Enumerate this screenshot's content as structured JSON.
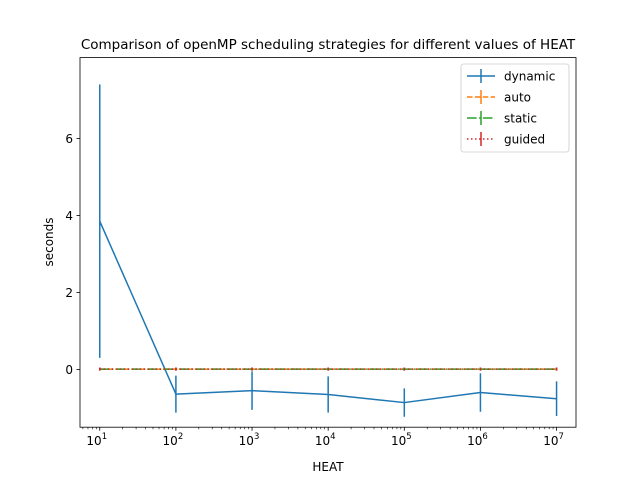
{
  "chart_data": {
    "type": "line",
    "title": "Comparison of openMP scheduling strategies for different values of HEAT",
    "xlabel": "HEAT",
    "ylabel": "seconds",
    "xscale": "log",
    "xlim": [
      5.5,
      18000000
    ],
    "ylim": [
      -1.5,
      8.1
    ],
    "x": [
      10,
      100,
      1000,
      10000,
      100000,
      1000000,
      10000000
    ],
    "x_tick_labels": [
      {
        "value": 10,
        "base": "10",
        "exp": "1"
      },
      {
        "value": 100,
        "base": "10",
        "exp": "2"
      },
      {
        "value": 1000,
        "base": "10",
        "exp": "3"
      },
      {
        "value": 10000,
        "base": "10",
        "exp": "4"
      },
      {
        "value": 100000,
        "base": "10",
        "exp": "5"
      },
      {
        "value": 1000000,
        "base": "10",
        "exp": "6"
      },
      {
        "value": 10000000,
        "base": "10",
        "exp": "7"
      }
    ],
    "y_ticks": [
      0,
      2,
      4,
      6
    ],
    "y_tick_labels": [
      "0",
      "2",
      "4",
      "6"
    ],
    "grid": false,
    "legend_position": "top-right",
    "series": [
      {
        "name": "dynamic",
        "color": "#1f77b4",
        "linestyle": "solid",
        "values": [
          3.85,
          -0.64,
          -0.55,
          -0.65,
          -0.86,
          -0.6,
          -0.76
        ],
        "errors": [
          3.55,
          0.48,
          0.5,
          0.47,
          0.37,
          0.5,
          0.45
        ]
      },
      {
        "name": "auto",
        "color": "#ff7f0e",
        "linestyle": "dashed",
        "values": [
          0.01,
          0.01,
          0.01,
          0.01,
          0.01,
          0.01,
          0.01
        ],
        "errors": [
          0.04,
          0.04,
          0.04,
          0.04,
          0.04,
          0.04,
          0.04
        ]
      },
      {
        "name": "static",
        "color": "#2ca02c",
        "linestyle": "dashdot",
        "values": [
          0.01,
          0.01,
          0.01,
          0.01,
          0.01,
          0.01,
          0.01
        ],
        "errors": [
          0.04,
          0.04,
          0.04,
          0.04,
          0.04,
          0.04,
          0.04
        ]
      },
      {
        "name": "guided",
        "color": "#d62728",
        "linestyle": "dotted",
        "values": [
          0.01,
          0.01,
          0.01,
          0.01,
          0.01,
          0.01,
          0.01
        ],
        "errors": [
          0.04,
          0.04,
          0.04,
          0.04,
          0.04,
          0.04,
          0.04
        ]
      }
    ]
  }
}
